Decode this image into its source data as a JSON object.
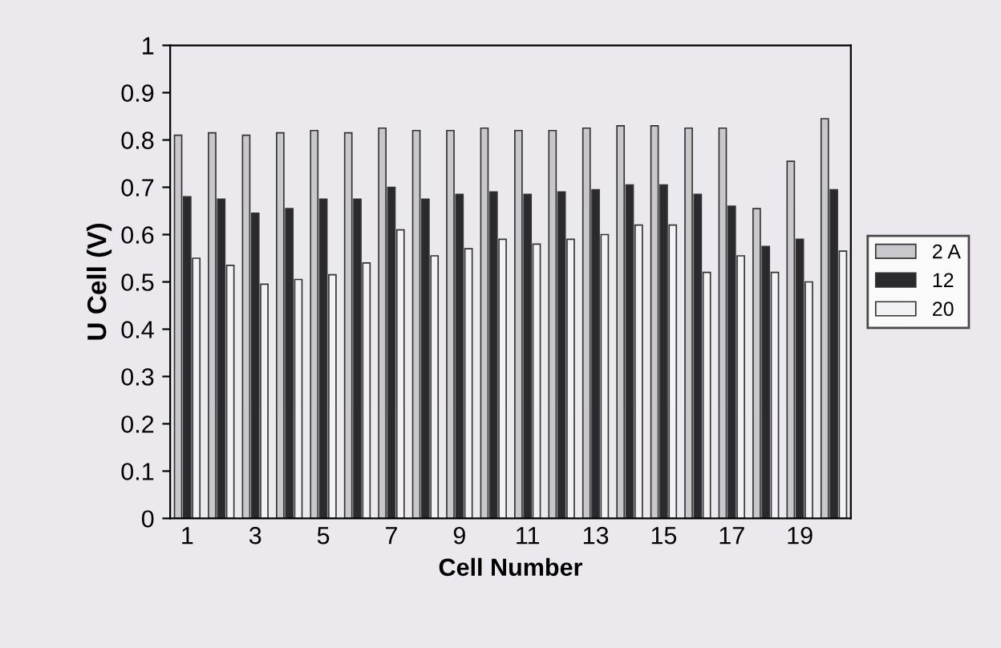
{
  "chart_data": {
    "type": "bar",
    "xlabel": "Cell Number",
    "ylabel": "U Cell (V)",
    "categories": [
      "1",
      null,
      "3",
      null,
      "5",
      null,
      "7",
      null,
      "9",
      null,
      "11",
      null,
      "13",
      null,
      "15",
      null,
      "17",
      null,
      "19",
      null
    ],
    "series": [
      {
        "name": "2 A",
        "color": "#c8c8cc",
        "values": [
          0.81,
          0.815,
          0.81,
          0.815,
          0.82,
          0.815,
          0.825,
          0.82,
          0.82,
          0.825,
          0.82,
          0.82,
          0.825,
          0.83,
          0.83,
          0.825,
          0.825,
          0.655,
          0.755,
          0.845
        ]
      },
      {
        "name": "12",
        "color": "#2a2a2e",
        "values": [
          0.68,
          0.675,
          0.645,
          0.655,
          0.675,
          0.675,
          0.7,
          0.675,
          0.685,
          0.69,
          0.685,
          0.69,
          0.695,
          0.705,
          0.705,
          0.685,
          0.66,
          0.575,
          0.59,
          0.695
        ]
      },
      {
        "name": "20",
        "color": "#f2f2f4",
        "values": [
          0.55,
          0.535,
          0.495,
          0.505,
          0.515,
          0.54,
          0.61,
          0.555,
          0.57,
          0.59,
          0.58,
          0.59,
          0.6,
          0.62,
          0.62,
          0.52,
          0.555,
          0.52,
          0.5,
          0.565
        ]
      }
    ],
    "ylim": [
      0,
      1
    ],
    "yticks": [
      0,
      0.1,
      0.2,
      0.3,
      0.4,
      0.5,
      0.6,
      0.7,
      0.8,
      0.9,
      1
    ],
    "grid": false,
    "legend": "right"
  }
}
